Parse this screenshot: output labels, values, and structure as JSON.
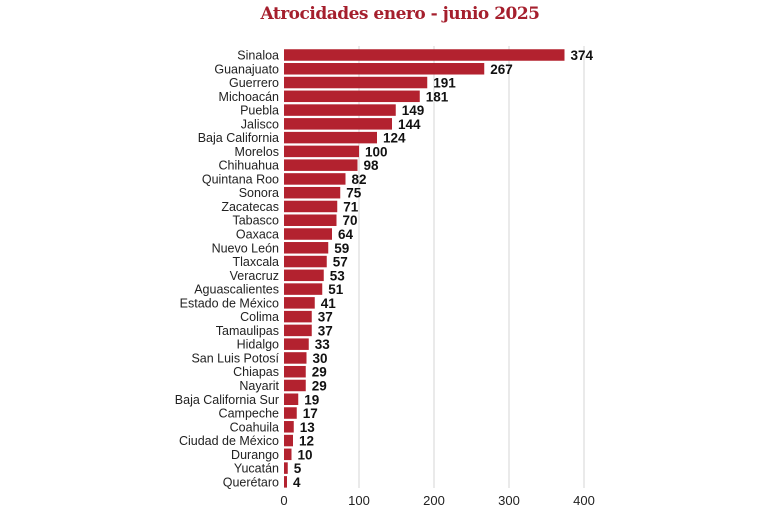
{
  "chart_data": {
    "type": "bar",
    "orientation": "horizontal",
    "title": "Atrocidades enero - junio 2025",
    "categories": [
      "Sinaloa",
      "Guanajuato",
      "Guerrero",
      "Michoacán",
      "Puebla",
      "Jalisco",
      "Baja California",
      "Morelos",
      "Chihuahua",
      "Quintana Roo",
      "Sonora",
      "Zacatecas",
      "Tabasco",
      "Oaxaca",
      "Nuevo León",
      "Tlaxcala",
      "Veracruz",
      "Aguascalientes",
      "Estado de México",
      "Colima",
      "Tamaulipas",
      "Hidalgo",
      "San Luis Potosí",
      "Chiapas",
      "Nayarit",
      "Baja California Sur",
      "Campeche",
      "Coahuila",
      "Ciudad de México",
      "Durango",
      "Yucatán",
      "Querétaro"
    ],
    "values": [
      374,
      267,
      191,
      181,
      149,
      144,
      124,
      100,
      98,
      82,
      75,
      71,
      70,
      64,
      59,
      57,
      53,
      51,
      41,
      37,
      37,
      33,
      30,
      29,
      29,
      19,
      17,
      13,
      12,
      10,
      5,
      4
    ],
    "xlim": [
      0,
      400
    ],
    "xticks": [
      0,
      100,
      200,
      300,
      400
    ],
    "grid": "vertical",
    "bar_color": "#b3222f",
    "title_color": "#a51f2d"
  }
}
